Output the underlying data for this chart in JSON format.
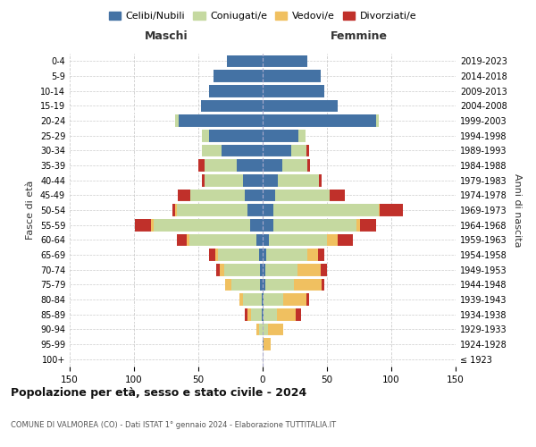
{
  "age_groups": [
    "100+",
    "95-99",
    "90-94",
    "85-89",
    "80-84",
    "75-79",
    "70-74",
    "65-69",
    "60-64",
    "55-59",
    "50-54",
    "45-49",
    "40-44",
    "35-39",
    "30-34",
    "25-29",
    "20-24",
    "15-19",
    "10-14",
    "5-9",
    "0-4"
  ],
  "birth_years": [
    "≤ 1923",
    "1924-1928",
    "1929-1933",
    "1934-1938",
    "1939-1943",
    "1944-1948",
    "1949-1953",
    "1954-1958",
    "1959-1963",
    "1964-1968",
    "1969-1973",
    "1974-1978",
    "1979-1983",
    "1984-1988",
    "1989-1993",
    "1994-1998",
    "1999-2003",
    "2004-2008",
    "2009-2013",
    "2014-2018",
    "2019-2023"
  ],
  "male": {
    "celibi": [
      0,
      0,
      0,
      1,
      1,
      2,
      2,
      3,
      5,
      10,
      12,
      14,
      15,
      20,
      32,
      42,
      65,
      48,
      42,
      38,
      28
    ],
    "coniugati": [
      0,
      0,
      3,
      8,
      14,
      22,
      28,
      32,
      52,
      75,
      55,
      42,
      30,
      25,
      15,
      5,
      3,
      0,
      0,
      0,
      0
    ],
    "vedovi": [
      0,
      0,
      2,
      3,
      3,
      5,
      3,
      2,
      2,
      2,
      1,
      0,
      0,
      0,
      0,
      0,
      0,
      0,
      0,
      0,
      0
    ],
    "divorziati": [
      0,
      0,
      0,
      2,
      0,
      0,
      3,
      5,
      8,
      12,
      2,
      10,
      2,
      5,
      0,
      0,
      0,
      0,
      0,
      0,
      0
    ]
  },
  "female": {
    "nubili": [
      0,
      1,
      0,
      1,
      1,
      2,
      2,
      3,
      5,
      8,
      8,
      10,
      12,
      15,
      22,
      28,
      88,
      58,
      48,
      45,
      35
    ],
    "coniugate": [
      0,
      0,
      4,
      10,
      15,
      22,
      25,
      32,
      45,
      65,
      82,
      42,
      32,
      20,
      12,
      5,
      2,
      0,
      0,
      0,
      0
    ],
    "vedove": [
      0,
      5,
      12,
      15,
      18,
      22,
      18,
      8,
      8,
      3,
      1,
      0,
      0,
      0,
      0,
      0,
      0,
      0,
      0,
      0,
      0
    ],
    "divorziate": [
      0,
      0,
      0,
      4,
      2,
      2,
      5,
      5,
      12,
      12,
      18,
      12,
      2,
      2,
      2,
      0,
      0,
      0,
      0,
      0,
      0
    ]
  },
  "colors": {
    "celibi": "#4472a4",
    "coniugati": "#c5d9a0",
    "vedovi": "#f0c060",
    "divorziati": "#c0302a"
  },
  "legend_labels": [
    "Celibi/Nubili",
    "Coniugati/e",
    "Vedovi/e",
    "Divorziati/e"
  ],
  "xlabel_left": "Maschi",
  "xlabel_right": "Femmine",
  "ylabel_left": "Fasce di età",
  "ylabel_right": "Anni di nascita",
  "title": "Popolazione per età, sesso e stato civile - 2024",
  "subtitle": "COMUNE DI VALMOREA (CO) - Dati ISTAT 1° gennaio 2024 - Elaborazione TUTTITALIA.IT",
  "xlim": 150,
  "bg_color": "#ffffff",
  "grid_color": "#cccccc"
}
